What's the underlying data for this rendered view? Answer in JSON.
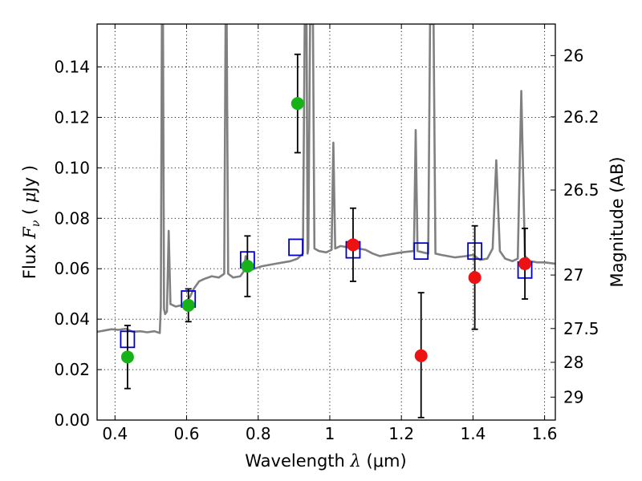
{
  "chart_data": {
    "type": "scatter",
    "xlabel": {
      "prefix": "Wavelength  ",
      "symbol": "λ",
      "units": " (μm)"
    },
    "ylabel": {
      "prefix": "Flux  ",
      "symbol": "F",
      "sub": "ν",
      "mid": "  ( ",
      "mu": "μ",
      "units": "Jy )"
    },
    "y2label": "Magnitude (AB)",
    "xlim": [
      0.35,
      1.63
    ],
    "ylim": [
      0.0,
      0.157
    ],
    "xticks": [
      0.4,
      0.6,
      0.8,
      1.0,
      1.2,
      1.4,
      1.6
    ],
    "xtick_labels": [
      "0.4",
      "0.6",
      "0.8",
      "1",
      "1.2",
      "1.4",
      "1.6"
    ],
    "yticks": [
      0.0,
      0.02,
      0.04,
      0.06,
      0.08,
      0.1,
      0.12,
      0.14
    ],
    "ytick_labels": [
      "0.00",
      "0.02",
      "0.04",
      "0.06",
      "0.08",
      "0.10",
      "0.12",
      "0.14"
    ],
    "y2ticks": [
      {
        "label": "26",
        "flux": 0.1445
      },
      {
        "label": "26.2",
        "flux": 0.1202
      },
      {
        "label": "26.5",
        "flux": 0.0912
      },
      {
        "label": "27",
        "flux": 0.0575
      },
      {
        "label": "27.5",
        "flux": 0.0363
      },
      {
        "label": "28",
        "flux": 0.0229
      },
      {
        "label": "29",
        "flux": 0.0091
      }
    ],
    "grid": true,
    "colors": {
      "spectrum": "#808080",
      "model_box": "#0000cc",
      "green": "#17b217",
      "red": "#ee1111",
      "errorbar": "#000000"
    },
    "spectrum": [
      [
        0.35,
        0.035
      ],
      [
        0.37,
        0.0355
      ],
      [
        0.39,
        0.036
      ],
      [
        0.41,
        0.0358
      ],
      [
        0.43,
        0.0362
      ],
      [
        0.45,
        0.035
      ],
      [
        0.47,
        0.0352
      ],
      [
        0.49,
        0.0348
      ],
      [
        0.51,
        0.0352
      ],
      [
        0.525,
        0.0345
      ],
      [
        0.528,
        0.045
      ],
      [
        0.531,
        0.157
      ],
      [
        0.534,
        0.157
      ],
      [
        0.537,
        0.044
      ],
      [
        0.54,
        0.042
      ],
      [
        0.545,
        0.043
      ],
      [
        0.55,
        0.075
      ],
      [
        0.555,
        0.046
      ],
      [
        0.57,
        0.045
      ],
      [
        0.585,
        0.0455
      ],
      [
        0.6,
        0.047
      ],
      [
        0.61,
        0.049
      ],
      [
        0.62,
        0.052
      ],
      [
        0.635,
        0.055
      ],
      [
        0.65,
        0.056
      ],
      [
        0.67,
        0.057
      ],
      [
        0.69,
        0.0565
      ],
      [
        0.705,
        0.058
      ],
      [
        0.709,
        0.157
      ],
      [
        0.712,
        0.157
      ],
      [
        0.716,
        0.058
      ],
      [
        0.73,
        0.0565
      ],
      [
        0.75,
        0.057
      ],
      [
        0.76,
        0.059
      ],
      [
        0.765,
        0.065
      ],
      [
        0.77,
        0.059
      ],
      [
        0.79,
        0.06
      ],
      [
        0.81,
        0.061
      ],
      [
        0.83,
        0.0615
      ],
      [
        0.85,
        0.062
      ],
      [
        0.87,
        0.0625
      ],
      [
        0.89,
        0.063
      ],
      [
        0.91,
        0.064
      ],
      [
        0.925,
        0.066
      ],
      [
        0.93,
        0.157
      ],
      [
        0.935,
        0.157
      ],
      [
        0.938,
        0.066
      ],
      [
        0.94,
        0.068
      ],
      [
        0.945,
        0.157
      ],
      [
        0.953,
        0.157
      ],
      [
        0.957,
        0.068
      ],
      [
        0.97,
        0.067
      ],
      [
        0.99,
        0.0665
      ],
      [
        1.005,
        0.0675
      ],
      [
        1.01,
        0.11
      ],
      [
        1.015,
        0.068
      ],
      [
        1.03,
        0.069
      ],
      [
        1.05,
        0.0685
      ],
      [
        1.08,
        0.068
      ],
      [
        1.1,
        0.0675
      ],
      [
        1.12,
        0.066
      ],
      [
        1.14,
        0.065
      ],
      [
        1.16,
        0.0655
      ],
      [
        1.18,
        0.066
      ],
      [
        1.2,
        0.0665
      ],
      [
        1.22,
        0.0668
      ],
      [
        1.235,
        0.067
      ],
      [
        1.24,
        0.115
      ],
      [
        1.245,
        0.067
      ],
      [
        1.26,
        0.0665
      ],
      [
        1.275,
        0.066
      ],
      [
        1.28,
        0.157
      ],
      [
        1.29,
        0.157
      ],
      [
        1.295,
        0.066
      ],
      [
        1.31,
        0.0655
      ],
      [
        1.33,
        0.065
      ],
      [
        1.35,
        0.0645
      ],
      [
        1.38,
        0.065
      ],
      [
        1.4,
        0.0655
      ],
      [
        1.42,
        0.0635
      ],
      [
        1.44,
        0.064
      ],
      [
        1.455,
        0.068
      ],
      [
        1.465,
        0.103
      ],
      [
        1.475,
        0.067
      ],
      [
        1.49,
        0.064
      ],
      [
        1.51,
        0.063
      ],
      [
        1.525,
        0.064
      ],
      [
        1.535,
        0.1305
      ],
      [
        1.545,
        0.065
      ],
      [
        1.56,
        0.063
      ],
      [
        1.58,
        0.0625
      ],
      [
        1.6,
        0.0625
      ],
      [
        1.63,
        0.062
      ]
    ],
    "model_boxes": [
      {
        "x": 0.435,
        "y": 0.032
      },
      {
        "x": 0.605,
        "y": 0.048
      },
      {
        "x": 0.77,
        "y": 0.0635
      },
      {
        "x": 0.905,
        "y": 0.0685
      },
      {
        "x": 1.065,
        "y": 0.0675
      },
      {
        "x": 1.255,
        "y": 0.067
      },
      {
        "x": 1.405,
        "y": 0.067
      },
      {
        "x": 1.545,
        "y": 0.0595
      }
    ],
    "series": [
      {
        "color_key": "green",
        "points": [
          {
            "x": 0.435,
            "y": 0.025,
            "yerr_low": 0.0125,
            "yerr_high": 0.0375
          },
          {
            "x": 0.605,
            "y": 0.0455,
            "yerr_low": 0.039,
            "yerr_high": 0.052
          },
          {
            "x": 0.77,
            "y": 0.061,
            "yerr_low": 0.049,
            "yerr_high": 0.073
          },
          {
            "x": 0.91,
            "y": 0.1255,
            "yerr_low": 0.106,
            "yerr_high": 0.145
          }
        ]
      },
      {
        "color_key": "red",
        "points": [
          {
            "x": 1.065,
            "y": 0.0695,
            "yerr_low": 0.055,
            "yerr_high": 0.084
          },
          {
            "x": 1.255,
            "y": 0.0255,
            "yerr_low": 0.001,
            "yerr_high": 0.0505
          },
          {
            "x": 1.405,
            "y": 0.0565,
            "yerr_low": 0.036,
            "yerr_high": 0.077
          },
          {
            "x": 1.545,
            "y": 0.062,
            "yerr_low": 0.048,
            "yerr_high": 0.076
          }
        ]
      }
    ]
  }
}
